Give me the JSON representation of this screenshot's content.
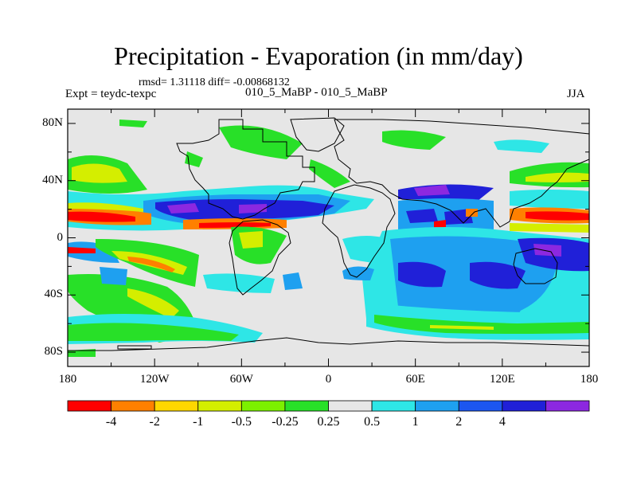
{
  "title": "Precipitation - Evaporation (in mm/day)",
  "stats": "rmsd= 1.31118 diff= -0.00868132",
  "experiment": "Expt = teydc-texpc",
  "experiment_name": "010_5_MaBP - 010_5_MaBP",
  "season": "JJA",
  "map": {
    "lat_labels": [
      "80N",
      "40N",
      "0",
      "40S",
      "80S"
    ],
    "lat_values": [
      80,
      40,
      0,
      -40,
      -80
    ],
    "lon_labels": [
      "180",
      "120W",
      "60W",
      "0",
      "60E",
      "120E",
      "180"
    ],
    "lon_values": [
      -180,
      -120,
      -60,
      0,
      60,
      120,
      180
    ],
    "lon_range": [
      -180,
      180
    ],
    "lat_range": [
      -90,
      90
    ]
  },
  "colorbar": {
    "labels": [
      "-4",
      "-2",
      "-1",
      "-0.5",
      "-0.25",
      "0.25",
      "0.5",
      "1",
      "2",
      "4"
    ],
    "colors": [
      "#ff0000",
      "#ff8000",
      "#ffd700",
      "#d4ee00",
      "#7cf000",
      "#28e028",
      "#e6e6e6",
      "#2ee6e6",
      "#1ea0f0",
      "#1c56f0",
      "#2020d8",
      "#8c28e0"
    ]
  }
}
